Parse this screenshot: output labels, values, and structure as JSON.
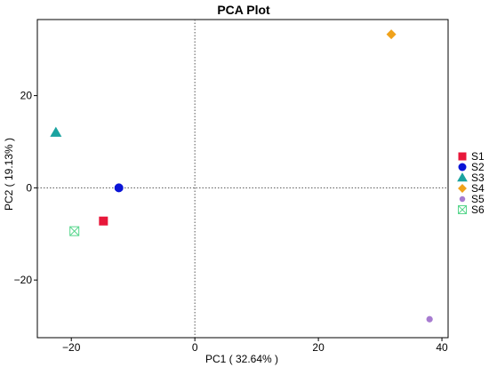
{
  "chart_data": {
    "type": "scatter",
    "title": "PCA Plot",
    "xlabel": "PC1 ( 32.64% )",
    "ylabel": "PC2 ( 19.13% )",
    "xlim": [
      -25.5,
      41
    ],
    "ylim": [
      -32.5,
      36.5
    ],
    "xticks": [
      -20,
      0,
      20,
      40
    ],
    "yticks": [
      -20,
      0,
      20
    ],
    "x_tick_labels": [
      "−20",
      "0",
      "20",
      "40"
    ],
    "y_tick_labels": [
      "−20",
      "0",
      "20"
    ],
    "reference_lines": {
      "x": 0,
      "y": 0,
      "style": "dotted"
    },
    "grid": false,
    "legend_position": "right",
    "series": [
      {
        "name": "S1",
        "x": -14.8,
        "y": -7.2,
        "marker": "square",
        "color": "#E8173A"
      },
      {
        "name": "S2",
        "x": -12.3,
        "y": 0.0,
        "marker": "circle",
        "color": "#0A14D6"
      },
      {
        "name": "S3",
        "x": -22.5,
        "y": 12.0,
        "marker": "triangle",
        "color": "#1AA3A0"
      },
      {
        "name": "S4",
        "x": 31.8,
        "y": 33.3,
        "marker": "diamond",
        "color": "#F0A21B"
      },
      {
        "name": "S5",
        "x": 38.0,
        "y": -28.5,
        "marker": "circle-small",
        "color": "#A77BD0"
      },
      {
        "name": "S6",
        "x": -19.5,
        "y": -9.4,
        "marker": "boxed-x",
        "color": "#58D68D"
      }
    ]
  }
}
